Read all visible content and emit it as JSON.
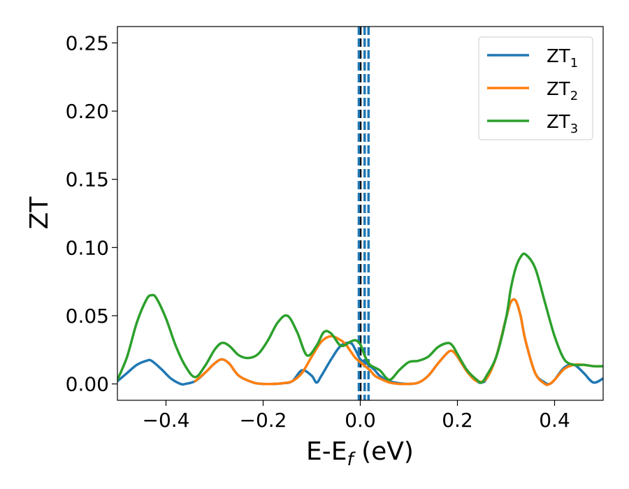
{
  "chart_data": {
    "type": "line",
    "title": "",
    "xlabel_main": "E-E",
    "xlabel_sub": "f",
    "xlabel_unit": " (eV)",
    "ylabel": "ZT",
    "xlim": [
      -0.5,
      0.5
    ],
    "ylim": [
      -0.012,
      0.262
    ],
    "xticks": [
      -0.4,
      -0.2,
      0.0,
      0.2,
      0.4
    ],
    "xtick_labels": [
      "−0.4",
      "−0.2",
      "0.0",
      "0.2",
      "0.4"
    ],
    "yticks": [
      0.0,
      0.05,
      0.1,
      0.15,
      0.2,
      0.25
    ],
    "ytick_labels": [
      "0.00",
      "0.05",
      "0.10",
      "0.15",
      "0.20",
      "0.25"
    ],
    "grid": false,
    "legend_position": "top-right",
    "vlines": [
      {
        "x": 0.0,
        "color": "#000000",
        "style": "dashed"
      },
      {
        "x": 0.0,
        "color": "#1f77b4",
        "style": "dashed"
      },
      {
        "x": 0.009,
        "color": "#1f77b4",
        "style": "dashed"
      },
      {
        "x": 0.017,
        "color": "#1f77b4",
        "style": "dashed"
      }
    ],
    "series": [
      {
        "name": "ZT",
        "subscript": "1",
        "color": "#1f77b4",
        "x": [
          -0.5,
          -0.48,
          -0.46,
          -0.44,
          -0.43,
          -0.41,
          -0.39,
          -0.37,
          -0.36,
          -0.34,
          -0.32,
          -0.3,
          -0.285,
          -0.27,
          -0.25,
          -0.22,
          -0.2,
          -0.18,
          -0.16,
          -0.14,
          -0.12,
          -0.1,
          -0.09,
          -0.08,
          -0.06,
          -0.04,
          -0.02,
          -0.01,
          0.0,
          0.01,
          0.02,
          0.03,
          0.04,
          0.06,
          0.08,
          0.1,
          0.12,
          0.14,
          0.16,
          0.18,
          0.19,
          0.2,
          0.22,
          0.24,
          0.25,
          0.26,
          0.28,
          0.3,
          0.31,
          0.32,
          0.33,
          0.34,
          0.36,
          0.38,
          0.39,
          0.4,
          0.42,
          0.44,
          0.46,
          0.48,
          0.5
        ],
        "y": [
          0.002,
          0.008,
          0.014,
          0.017,
          0.017,
          0.011,
          0.004,
          0.0,
          0.0,
          0.002,
          0.008,
          0.015,
          0.018,
          0.015,
          0.006,
          0.001,
          0.0,
          0.0,
          0.0005,
          0.002,
          0.01,
          0.006,
          0.001,
          0.006,
          0.018,
          0.028,
          0.03,
          0.025,
          0.018,
          0.016,
          0.013,
          0.01,
          0.006,
          0.002,
          0.0005,
          0.0,
          0.001,
          0.006,
          0.015,
          0.023,
          0.024,
          0.02,
          0.009,
          0.002,
          0.001,
          0.004,
          0.02,
          0.048,
          0.06,
          0.061,
          0.05,
          0.032,
          0.008,
          0.001,
          0.0,
          0.003,
          0.012,
          0.014,
          0.008,
          0.001,
          0.004
        ]
      },
      {
        "name": "ZT",
        "subscript": "2",
        "color": "#ff7f0e",
        "x": [
          -0.34,
          -0.32,
          -0.3,
          -0.285,
          -0.27,
          -0.25,
          -0.22,
          -0.2,
          -0.18,
          -0.16,
          -0.14,
          -0.12,
          -0.1,
          -0.08,
          -0.06,
          -0.04,
          -0.03,
          -0.02,
          -0.01,
          0.0,
          0.01,
          0.02,
          0.03,
          0.04,
          0.06,
          0.08,
          0.1,
          0.12,
          0.14,
          0.16,
          0.18,
          0.19,
          0.2,
          0.22,
          0.24,
          0.26,
          0.28,
          0.3,
          0.31,
          0.32,
          0.33,
          0.34,
          0.36,
          0.38,
          0.39,
          0.4,
          0.42,
          0.44,
          0.46,
          0.48,
          0.5
        ],
        "y": [
          0.002,
          0.008,
          0.015,
          0.018,
          0.015,
          0.006,
          0.001,
          0.0,
          0.0,
          0.0005,
          0.002,
          0.008,
          0.02,
          0.031,
          0.035,
          0.032,
          0.029,
          0.024,
          0.019,
          0.016,
          0.013,
          0.01,
          0.006,
          0.004,
          0.001,
          0.0,
          0.0,
          0.001,
          0.006,
          0.015,
          0.023,
          0.024,
          0.02,
          0.009,
          0.002,
          0.004,
          0.02,
          0.048,
          0.06,
          0.061,
          0.05,
          0.032,
          0.008,
          0.0,
          0.0,
          0.003,
          0.011,
          0.014,
          0.014,
          0.013,
          0.013
        ]
      },
      {
        "name": "ZT",
        "subscript": "3",
        "color": "#2ca02c",
        "x": [
          -0.5,
          -0.48,
          -0.46,
          -0.44,
          -0.43,
          -0.42,
          -0.4,
          -0.38,
          -0.36,
          -0.34,
          -0.32,
          -0.3,
          -0.285,
          -0.27,
          -0.25,
          -0.23,
          -0.21,
          -0.19,
          -0.17,
          -0.15,
          -0.13,
          -0.11,
          -0.09,
          -0.075,
          -0.06,
          -0.04,
          -0.02,
          -0.01,
          0.0,
          0.01,
          0.02,
          0.04,
          0.06,
          0.08,
          0.1,
          0.12,
          0.14,
          0.16,
          0.18,
          0.19,
          0.2,
          0.22,
          0.24,
          0.25,
          0.26,
          0.28,
          0.3,
          0.31,
          0.32,
          0.33,
          0.34,
          0.36,
          0.38,
          0.4,
          0.42,
          0.44,
          0.46,
          0.48,
          0.5
        ],
        "y": [
          0.003,
          0.02,
          0.045,
          0.062,
          0.065,
          0.063,
          0.048,
          0.028,
          0.013,
          0.005,
          0.013,
          0.025,
          0.03,
          0.028,
          0.021,
          0.019,
          0.022,
          0.032,
          0.045,
          0.05,
          0.038,
          0.021,
          0.028,
          0.038,
          0.037,
          0.028,
          0.031,
          0.032,
          0.029,
          0.02,
          0.014,
          0.01,
          0.003,
          0.01,
          0.016,
          0.017,
          0.02,
          0.027,
          0.03,
          0.028,
          0.022,
          0.01,
          0.003,
          0.001,
          0.006,
          0.02,
          0.048,
          0.07,
          0.085,
          0.093,
          0.095,
          0.085,
          0.06,
          0.035,
          0.018,
          0.014,
          0.014,
          0.013,
          0.013
        ]
      }
    ]
  }
}
